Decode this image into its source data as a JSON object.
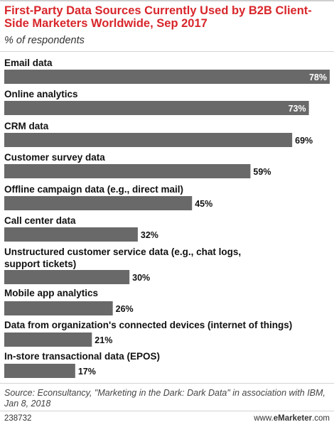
{
  "header": {
    "title": "First-Party Data Sources Currently Used by B2B Client-Side Marketers Worldwide, Sep 2017",
    "subtitle": "% of respondents"
  },
  "chart_data": {
    "type": "bar",
    "orientation": "horizontal",
    "title": "First-Party Data Sources Currently Used by B2B Client-Side Marketers Worldwide, Sep 2017",
    "subtitle": "% of respondents",
    "categories": [
      "Email data",
      "Online analytics",
      "CRM data",
      "Customer survey data",
      "Offline campaign data (e.g., direct mail)",
      "Call center data",
      "Unstructured customer service data (e.g., chat logs, support tickets)",
      "Mobile app analytics",
      "Data from organization's connected devices (internet of things)",
      "In-store transactional data (EPOS)"
    ],
    "values": [
      78,
      73,
      69,
      59,
      45,
      32,
      30,
      26,
      21,
      17
    ],
    "value_labels": [
      "78%",
      "73%",
      "69%",
      "59%",
      "45%",
      "32%",
      "30%",
      "26%",
      "21%",
      "17%"
    ],
    "xlim": [
      0,
      78
    ],
    "grid": false,
    "legend": "none",
    "bar_color": "#696969"
  },
  "footer": {
    "source": "Source: Econsultancy, \"Marketing in the Dark: Dark Data\" in association with IBM, Jan 8, 2018",
    "chart_id": "238732",
    "brand_prefix": "www.",
    "brand_name": "eMarketer",
    "brand_suffix": ".com"
  }
}
